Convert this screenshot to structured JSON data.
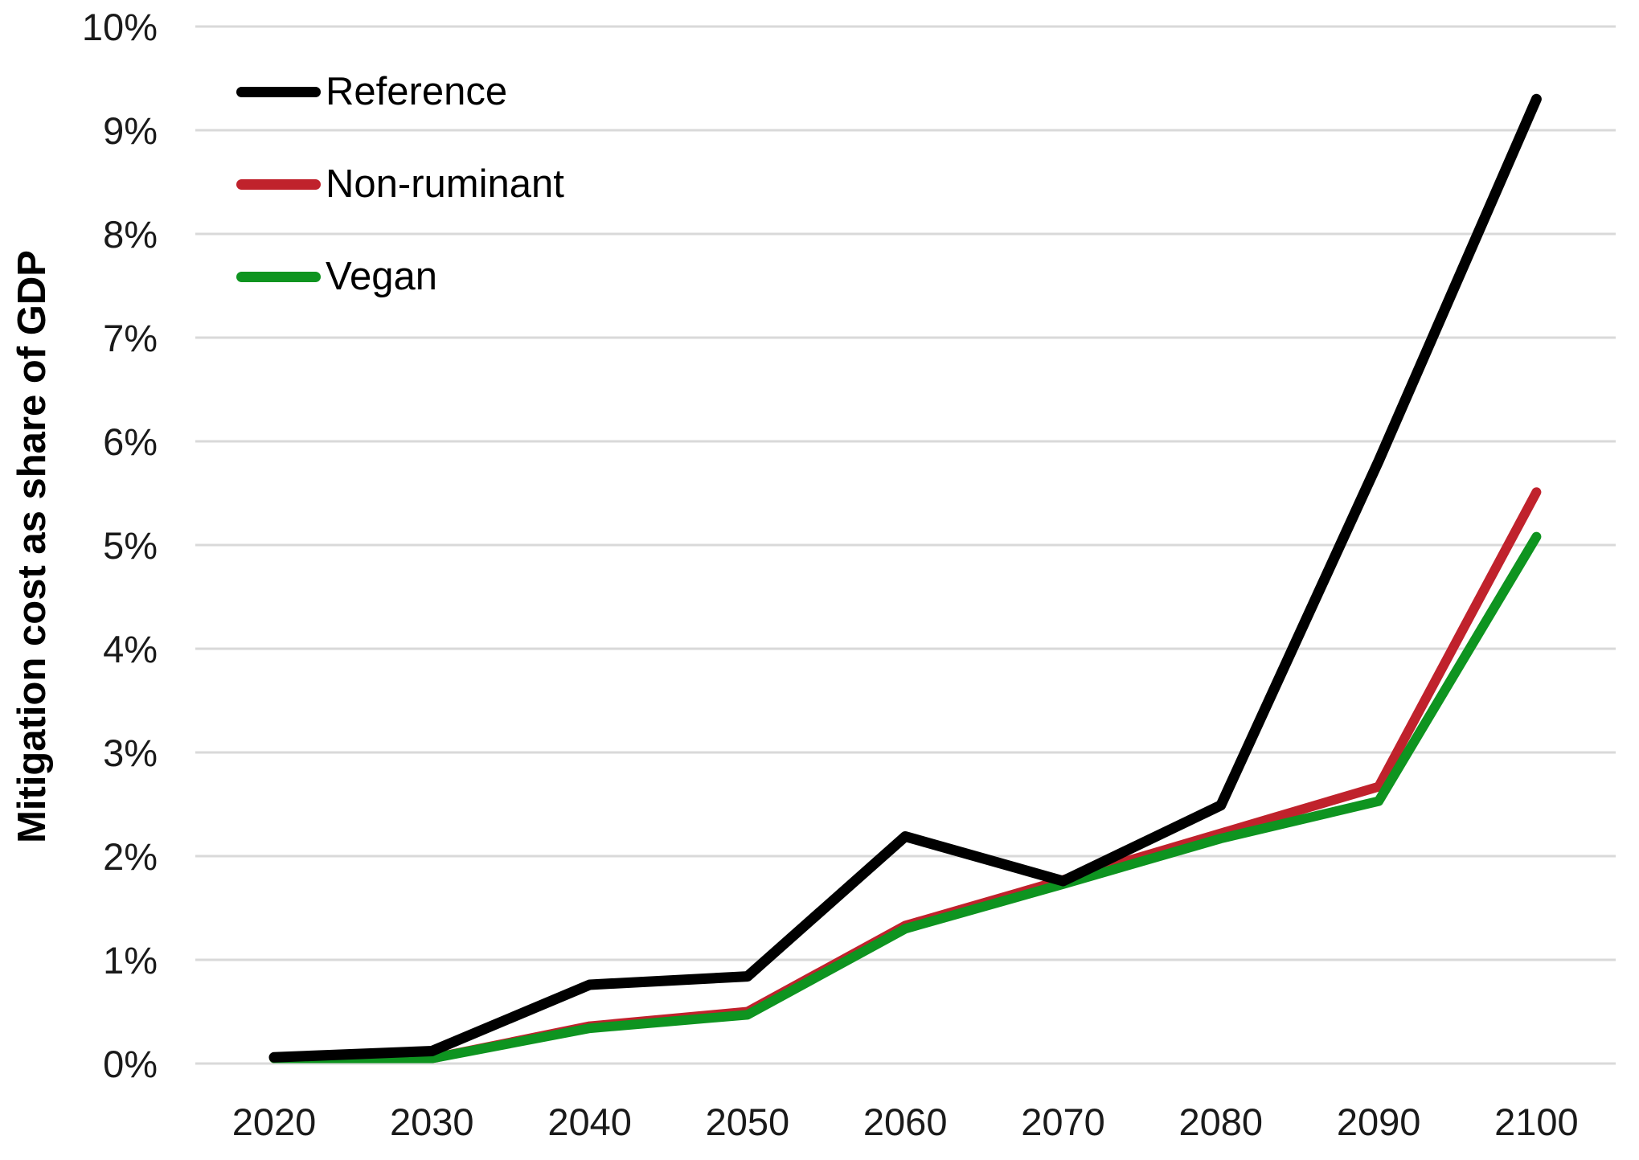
{
  "chart_data": {
    "type": "line",
    "title": "",
    "xlabel": "",
    "ylabel": "Mitigation cost as share of GDP",
    "x": [
      2020,
      2030,
      2040,
      2050,
      2060,
      2070,
      2080,
      2090,
      2100
    ],
    "x_tick_labels": [
      "2020",
      "2030",
      "2040",
      "2050",
      "2060",
      "2070",
      "2080",
      "2090",
      "2100"
    ],
    "y_ticks": [
      {
        "value": 0,
        "label": "0%"
      },
      {
        "value": 1,
        "label": "1%"
      },
      {
        "value": 2,
        "label": "2%"
      },
      {
        "value": 3,
        "label": "3%"
      },
      {
        "value": 4,
        "label": "4%"
      },
      {
        "value": 5,
        "label": "5%"
      },
      {
        "value": 6,
        "label": "6%"
      },
      {
        "value": 7,
        "label": "7%"
      },
      {
        "value": 8,
        "label": "8%"
      },
      {
        "value": 9,
        "label": "9%"
      },
      {
        "value": 10,
        "label": "10%"
      }
    ],
    "ylim": [
      0,
      10
    ],
    "grid": "horizontal-only",
    "legend_position": "top-left-inside",
    "background_color": "#ffffff",
    "gridline_color": "#d9d9d9",
    "series": [
      {
        "name": "Reference",
        "color": "#000000",
        "stroke_width": 13,
        "values": [
          0.06,
          0.12,
          0.76,
          0.84,
          2.19,
          1.76,
          2.49,
          5.81,
          9.3
        ]
      },
      {
        "name": "Non-ruminant",
        "color": "#c0222c",
        "stroke_width": 12,
        "values": [
          0.05,
          0.05,
          0.36,
          0.5,
          1.33,
          1.77,
          2.22,
          2.67,
          5.51
        ]
      },
      {
        "name": "Vegan",
        "color": "#0e9420",
        "stroke_width": 12,
        "values": [
          0.05,
          0.05,
          0.34,
          0.47,
          1.3,
          1.73,
          2.17,
          2.53,
          5.08
        ]
      }
    ]
  }
}
